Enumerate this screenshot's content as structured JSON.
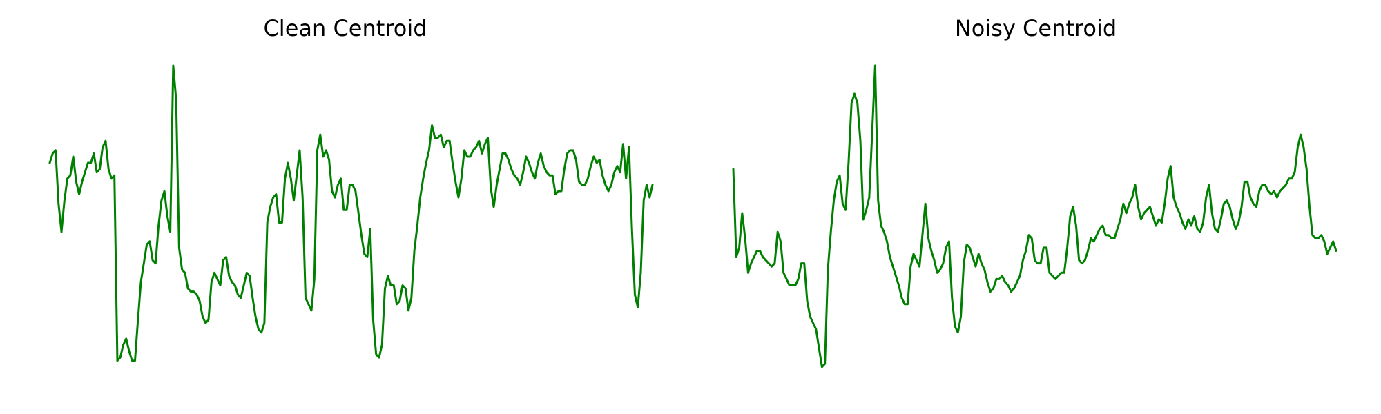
{
  "chart_data": [
    {
      "type": "line",
      "title": "Clean Centroid",
      "xlabel": "",
      "ylabel": "",
      "axes_visible": false,
      "grid": false,
      "line_color": "#008000",
      "ylim": [
        0,
        100
      ],
      "series": [
        {
          "values": [
            69,
            72,
            73,
            56,
            47,
            57,
            64,
            65,
            71,
            63,
            59,
            63,
            66,
            69,
            69,
            72,
            66,
            67,
            74,
            76,
            67,
            64,
            65,
            6,
            7,
            11,
            13,
            9,
            6,
            6,
            19,
            31,
            37,
            43,
            44,
            38,
            37,
            49,
            57,
            60,
            52,
            47,
            100,
            89,
            42,
            35,
            34,
            29,
            28,
            28,
            27,
            25,
            20,
            18,
            19,
            31,
            34,
            32,
            30,
            38,
            39,
            33,
            31,
            30,
            27,
            26,
            30,
            34,
            33,
            26,
            20,
            16,
            15,
            18,
            50,
            55,
            58,
            59,
            50,
            50,
            64,
            69,
            64,
            57,
            65,
            73,
            58,
            26,
            24,
            22,
            32,
            73,
            78,
            71,
            73,
            70,
            60,
            58,
            62,
            64,
            54,
            54,
            62,
            62,
            60,
            53,
            46,
            40,
            39,
            48,
            19,
            8,
            7,
            11,
            29,
            33,
            30,
            30,
            24,
            25,
            30,
            29,
            22,
            26,
            41,
            49,
            58,
            64,
            69,
            73,
            81,
            77,
            77,
            78,
            74,
            76,
            76,
            69,
            63,
            58,
            64,
            73,
            71,
            71,
            73,
            74,
            76,
            72,
            75,
            77,
            61,
            55,
            62,
            67,
            72,
            72,
            70,
            67,
            65,
            64,
            62,
            66,
            71,
            69,
            66,
            64,
            69,
            72,
            68,
            66,
            65,
            65,
            59,
            60,
            60,
            67,
            72,
            73,
            73,
            70,
            63,
            62,
            62,
            64,
            68,
            71,
            69,
            70,
            65,
            62,
            60,
            62,
            66,
            68,
            66,
            75,
            64,
            74,
            48,
            27,
            23,
            34,
            57,
            62,
            58,
            62
          ]
        }
      ]
    },
    {
      "type": "line",
      "title": "Noisy Centroid",
      "xlabel": "",
      "ylabel": "",
      "axes_visible": false,
      "grid": false,
      "line_color": "#008000",
      "ylim": [
        0,
        100
      ],
      "series": [
        {
          "values": [
            67,
            39,
            42,
            53,
            45,
            34,
            37,
            39,
            41,
            41,
            39,
            38,
            37,
            36,
            37,
            47,
            44,
            34,
            32,
            30,
            30,
            30,
            32,
            37,
            37,
            25,
            20,
            18,
            16,
            10,
            4,
            5,
            35,
            47,
            57,
            63,
            65,
            56,
            54,
            69,
            88,
            91,
            88,
            76,
            51,
            54,
            58,
            79,
            100,
            57,
            49,
            47,
            44,
            39,
            36,
            33,
            30,
            26,
            24,
            24,
            36,
            40,
            38,
            36,
            46,
            56,
            45,
            41,
            38,
            34,
            35,
            37,
            42,
            44,
            26,
            17,
            15,
            20,
            37,
            43,
            42,
            39,
            36,
            40,
            37,
            35,
            31,
            28,
            29,
            32,
            32,
            33,
            31,
            30,
            28,
            29,
            31,
            33,
            38,
            41,
            46,
            45,
            38,
            37,
            37,
            42,
            42,
            34,
            33,
            32,
            33,
            34,
            34,
            42,
            52,
            55,
            49,
            38,
            37,
            38,
            41,
            45,
            44,
            46,
            48,
            49,
            46,
            46,
            45,
            45,
            48,
            51,
            56,
            53,
            56,
            58,
            62,
            55,
            51,
            53,
            54,
            55,
            52,
            49,
            51,
            50,
            56,
            64,
            68,
            58,
            55,
            53,
            50,
            48,
            51,
            49,
            52,
            48,
            47,
            50,
            58,
            62,
            53,
            48,
            47,
            51,
            56,
            57,
            55,
            51,
            48,
            50,
            55,
            63,
            63,
            58,
            56,
            55,
            60,
            62,
            62,
            60,
            59,
            60,
            58,
            60,
            61,
            62,
            64,
            64,
            66,
            74,
            78,
            74,
            67,
            55,
            46,
            45,
            45,
            46,
            44,
            40,
            42,
            44,
            41
          ]
        }
      ]
    }
  ]
}
